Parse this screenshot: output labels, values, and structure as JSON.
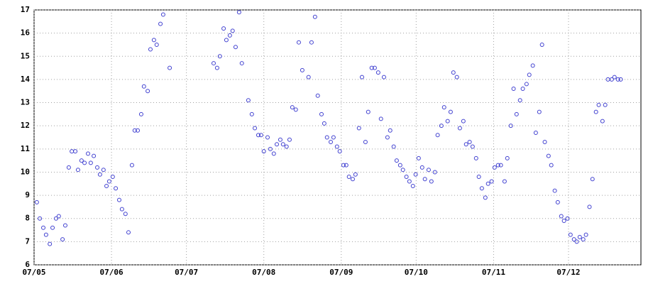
{
  "chart_data": {
    "type": "scatter",
    "x": [
      1.1,
      2.3,
      3.7,
      4.8,
      6.3,
      7.4,
      8.8,
      9.9,
      11.4,
      12.5,
      13.9,
      15.1,
      16.5,
      17.6,
      19.0,
      20.2,
      21.6,
      22.7,
      23.9,
      25.3,
      26.4,
      27.8,
      29.0,
      30.1,
      31.5,
      32.7,
      34.1,
      35.2,
      36.6,
      37.8,
      39.2,
      40.3,
      41.5,
      42.9,
      44.0,
      45.5,
      46.6,
      48.0,
      49.1,
      50.6,
      51.7,
      54.3,
      71.9,
      73.3,
      74.4,
      75.9,
      77.0,
      78.4,
      79.5,
      80.7,
      82.1,
      83.2,
      85.8,
      87.2,
      88.4,
      89.8,
      90.9,
      92.0,
      93.5,
      94.6,
      96.0,
      97.2,
      98.6,
      99.7,
      101.1,
      102.3,
      103.4,
      104.8,
      106.0,
      107.4,
      109.9,
      111.1,
      112.5,
      113.6,
      115.1,
      116.2,
      117.3,
      118.8,
      119.9,
      121.3,
      122.4,
      123.9,
      125.0,
      126.1,
      127.6,
      128.7,
      130.1,
      131.3,
      132.7,
      133.8,
      135.2,
      136.4,
      137.8,
      138.9,
      140.1,
      141.5,
      142.6,
      144.0,
      145.2,
      146.6,
      147.7,
      149.1,
      150.3,
      151.7,
      152.8,
      154.0,
      155.4,
      156.5,
      158.0,
      159.1,
      160.5,
      161.6,
      163.1,
      164.2,
      165.6,
      166.8,
      167.9,
      169.3,
      170.5,
      171.9,
      173.0,
      174.4,
      175.6,
      177.0,
      178.1,
      179.3,
      180.7,
      181.8,
      183.2,
      184.4,
      185.8,
      186.9,
      188.4,
      189.5,
      190.9,
      192.0,
      193.2,
      194.6,
      195.7,
      197.2,
      198.3,
      199.7,
      200.9,
      202.3,
      203.4,
      204.5,
      206.0,
      207.1,
      208.5,
      209.7,
      211.1,
      212.2,
      213.6,
      214.8,
      216.2,
      217.3,
      218.5,
      219.9,
      221.0,
      222.4,
      223.6,
      225.0,
      226.1,
      227.6,
      228.7,
      229.8,
      231.3,
      232.4,
      233.8,
      234.9
    ],
    "values": [
      8.7,
      8.0,
      7.6,
      7.3,
      6.9,
      7.6,
      8.0,
      8.1,
      7.1,
      7.7,
      10.2,
      10.9,
      10.9,
      10.1,
      10.5,
      10.4,
      10.8,
      10.4,
      10.7,
      10.2,
      9.9,
      10.1,
      9.4,
      9.6,
      9.8,
      9.3,
      8.8,
      8.4,
      8.2,
      7.4,
      10.3,
      11.8,
      11.8,
      12.5,
      13.7,
      13.5,
      15.3,
      15.7,
      15.5,
      16.4,
      16.8,
      14.5,
      14.7,
      14.5,
      15.0,
      16.2,
      15.7,
      15.9,
      16.1,
      15.4,
      16.9,
      14.7,
      13.1,
      12.5,
      11.9,
      11.6,
      11.6,
      10.9,
      11.5,
      11.0,
      10.8,
      11.2,
      11.4,
      11.2,
      11.1,
      11.4,
      12.8,
      12.7,
      15.6,
      14.4,
      14.1,
      15.6,
      16.7,
      13.3,
      12.5,
      12.1,
      11.5,
      11.3,
      11.5,
      11.1,
      10.9,
      10.3,
      10.3,
      9.8,
      9.7,
      9.9,
      11.9,
      14.1,
      11.3,
      12.6,
      14.5,
      14.5,
      14.3,
      12.3,
      14.1,
      11.5,
      11.8,
      11.1,
      10.5,
      10.3,
      10.1,
      9.8,
      9.6,
      9.4,
      9.9,
      10.6,
      10.2,
      9.7,
      10.1,
      9.6,
      10.0,
      11.6,
      12.0,
      12.8,
      12.2,
      12.6,
      14.3,
      14.1,
      11.9,
      12.2,
      11.2,
      11.3,
      11.1,
      10.6,
      9.8,
      9.3,
      8.9,
      9.5,
      9.6,
      10.2,
      10.3,
      10.3,
      9.6,
      10.6,
      12.0,
      13.6,
      12.5,
      13.1,
      13.6,
      13.8,
      14.2,
      14.6,
      11.7,
      12.6,
      15.5,
      11.3,
      10.7,
      10.3,
      9.2,
      8.7,
      8.1,
      7.9,
      8.0,
      7.3,
      7.1,
      7.0,
      7.2,
      7.1,
      7.3,
      8.5,
      9.7,
      12.6,
      12.9,
      12.2,
      12.9,
      14.0,
      14.0,
      14.1,
      14.0,
      14.0
    ],
    "color": "#4040d0",
    "xlim": [
      0,
      243
    ],
    "xticks": [
      {
        "value": 0,
        "label": "07/05"
      },
      {
        "value": 31,
        "label": "07/06"
      },
      {
        "value": 61,
        "label": "07/07"
      },
      {
        "value": 92,
        "label": "07/08"
      },
      {
        "value": 123,
        "label": "07/09"
      },
      {
        "value": 153,
        "label": "07/10"
      },
      {
        "value": 184,
        "label": "07/11"
      },
      {
        "value": 214,
        "label": "07/12"
      }
    ],
    "ylim": [
      6,
      17
    ],
    "yticks": [
      6,
      7,
      8,
      9,
      10,
      11,
      12,
      13,
      14,
      15,
      16,
      17
    ],
    "grid": true
  }
}
